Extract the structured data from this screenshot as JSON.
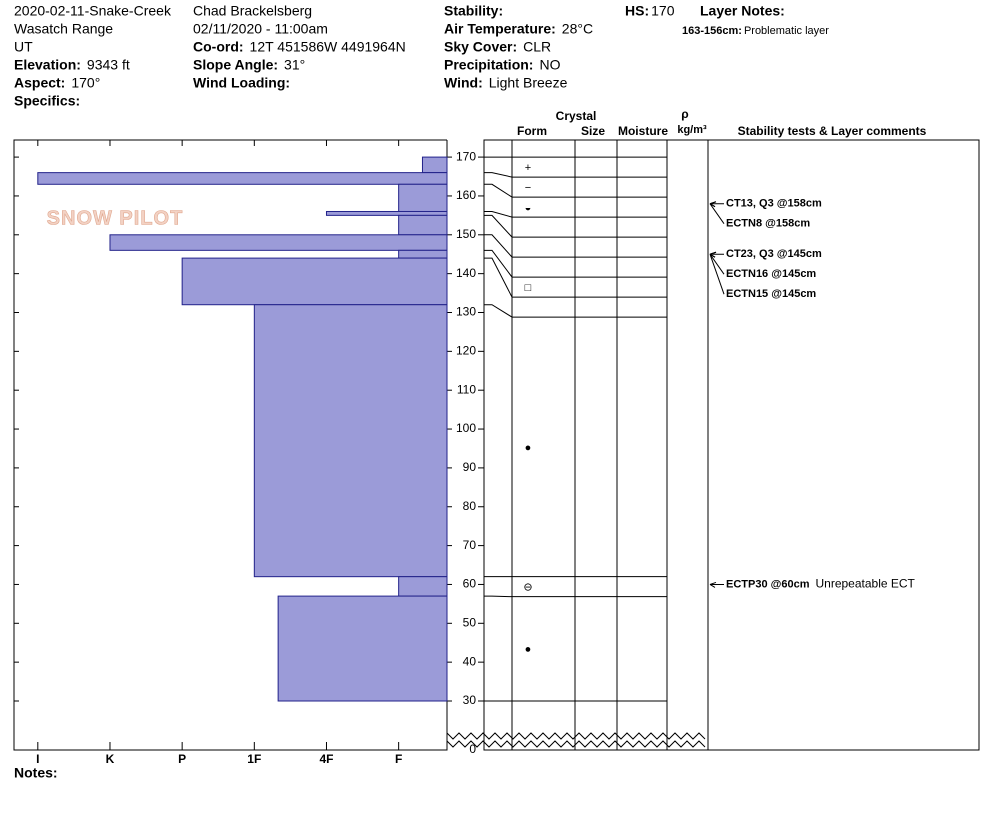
{
  "header": {
    "site": "2020-02-11-Snake-Creek",
    "range": "Wasatch Range",
    "state": "UT",
    "elevation": {
      "label": "Elevation:",
      "value": "9343 ft"
    },
    "aspect": {
      "label": "Aspect:",
      "value": "170°"
    },
    "specifics": {
      "label": "Specifics:"
    },
    "observer": "Chad Brackelsberg",
    "datetime": "02/11/2020 - 11:00am",
    "coord": {
      "label": "Co-ord:",
      "value": "12T 451586W 4491964N"
    },
    "slope": {
      "label": "Slope Angle:",
      "value": "31°"
    },
    "wind_loading": {
      "label": "Wind Loading:"
    },
    "stability": {
      "label": "Stability:"
    },
    "air_temp": {
      "label": "Air Temperature:",
      "value": "28°C"
    },
    "sky": {
      "label": "Sky Cover:",
      "value": "CLR"
    },
    "precip": {
      "label": "Precipitation:",
      "value": "NO"
    },
    "wind": {
      "label": "Wind:",
      "value": "Light Breeze"
    },
    "hs": {
      "label": "HS:",
      "value": 170
    },
    "layer_notes": {
      "label": "Layer Notes:",
      "items": [
        {
          "range": "163-156cm:",
          "text": "Problematic layer"
        }
      ]
    }
  },
  "profile": {
    "logo": "SNOW PILOT",
    "color": "#9b9bd8",
    "hardness_lim": [
      6.33,
      0.33
    ],
    "hardness_ticks": [
      {
        "value": 6,
        "label": "I"
      },
      {
        "value": 5,
        "label": "K"
      },
      {
        "value": 4,
        "label": "P"
      },
      {
        "value": 3,
        "label": "1F"
      },
      {
        "value": 2,
        "label": "4F"
      },
      {
        "value": 1,
        "label": "F"
      }
    ],
    "depth_lim": [
      30,
      174.4
    ],
    "depth_ticks": [
      0,
      30,
      40,
      50,
      60,
      70,
      80,
      90,
      100,
      110,
      120,
      130,
      140,
      150,
      160,
      170
    ],
    "columns": {
      "crystal": "Crystal",
      "form": "Form",
      "size": "Size",
      "moisture": "Moisture",
      "density_symbol": "ρ",
      "density_unit": "kg/m³",
      "comments": "Stability tests & Layer comments"
    },
    "layers": [
      {
        "top": 170,
        "bottom": 166,
        "hardness": 0.67,
        "form": "+"
      },
      {
        "top": 166,
        "bottom": 163,
        "hardness": 6,
        "form": "−"
      },
      {
        "top": 163,
        "bottom": 156,
        "hardness": 1,
        "form": "◒"
      },
      {
        "top": 156,
        "bottom": 155,
        "hardness": 2
      },
      {
        "top": 155,
        "bottom": 150,
        "hardness": 1
      },
      {
        "top": 150,
        "bottom": 146,
        "hardness": 5
      },
      {
        "top": 146,
        "bottom": 144,
        "hardness": 1,
        "form": "□"
      },
      {
        "top": 144,
        "bottom": 132,
        "hardness": 4
      },
      {
        "top": 132,
        "bottom": 62,
        "hardness": 3,
        "form": "●"
      },
      {
        "top": 62,
        "bottom": 57,
        "hardness": 1,
        "form": "⊖"
      },
      {
        "top": 57,
        "bottom": 30,
        "hardness": 2.67,
        "form": "●"
      }
    ],
    "tests": [
      {
        "text": "CT13, Q3 @158cm",
        "depth": 158
      },
      {
        "text": "ECTN8 @158cm",
        "depth": 158
      },
      {
        "text": "CT23, Q3 @145cm",
        "depth": 145
      },
      {
        "text": "ECTN16 @145cm",
        "depth": 145
      },
      {
        "text": "ECTN15 @145cm",
        "depth": 145
      },
      {
        "text": "ECTP30 @60cm",
        "depth": 60,
        "comment": "Unrepeatable ECT"
      }
    ],
    "notes_label": "Notes:"
  }
}
